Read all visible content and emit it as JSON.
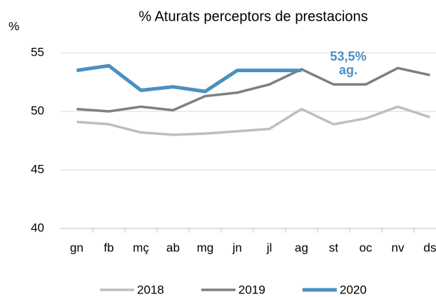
{
  "chart_data": {
    "type": "line",
    "title": "% Aturats perceptors de prestacions",
    "y_label": "%",
    "annotation": [
      "53,5%",
      "ag."
    ],
    "annotation_color": "#4a90c2",
    "categories": [
      "gn",
      "fb",
      "mç",
      "ab",
      "mg",
      "jn",
      "jl",
      "ag",
      "st",
      "oc",
      "nv",
      "ds"
    ],
    "series": [
      {
        "name": "2018",
        "color": "#bfbfbf",
        "values": [
          49.1,
          48.9,
          48.2,
          48.0,
          48.1,
          48.3,
          48.5,
          50.2,
          48.9,
          49.4,
          50.4,
          49.5
        ]
      },
      {
        "name": "2019",
        "color": "#7f7f7f",
        "values": [
          50.2,
          50.0,
          50.4,
          50.1,
          51.3,
          51.6,
          52.3,
          53.6,
          52.3,
          52.3,
          53.7,
          53.1
        ]
      },
      {
        "name": "2020",
        "color": "#4a90c2",
        "values": [
          53.5,
          53.9,
          51.8,
          52.1,
          51.7,
          53.5,
          53.5,
          53.5,
          null,
          null,
          null,
          null
        ]
      }
    ],
    "ylim": [
      40,
      55
    ],
    "yticks": [
      40,
      45,
      50,
      55
    ],
    "grid": true,
    "legend": "bottom"
  }
}
